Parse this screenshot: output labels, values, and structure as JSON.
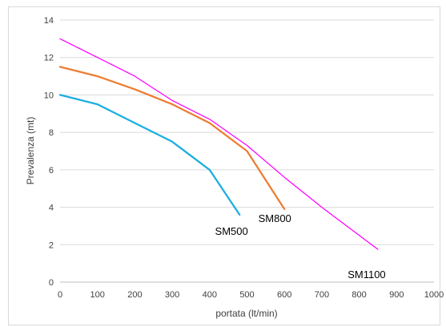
{
  "chart_data": {
    "type": "line",
    "title": "",
    "xlabel": "portata (lt/min)",
    "ylabel": "Prevalenza (mt)",
    "xlim": [
      0,
      1000
    ],
    "ylim": [
      0,
      14
    ],
    "x_ticks": [
      0,
      100,
      200,
      300,
      400,
      500,
      600,
      700,
      800,
      900,
      1000
    ],
    "y_ticks": [
      0,
      2,
      4,
      6,
      8,
      10,
      12,
      14
    ],
    "grid": "horizontal",
    "legend": "none",
    "series": [
      {
        "name": "SM500",
        "color": "#1aaee0",
        "points": [
          [
            0,
            10
          ],
          [
            100,
            9.5
          ],
          [
            200,
            8.5
          ],
          [
            300,
            7.5
          ],
          [
            400,
            6
          ],
          [
            480,
            3.6
          ]
        ]
      },
      {
        "name": "SM800",
        "color": "#ed7d31",
        "points": [
          [
            0,
            11.5
          ],
          [
            100,
            11
          ],
          [
            200,
            10.3
          ],
          [
            300,
            9.5
          ],
          [
            400,
            8.5
          ],
          [
            500,
            7
          ],
          [
            600,
            3.9
          ]
        ]
      },
      {
        "name": "SM1100",
        "color": "#ff00ff",
        "points": [
          [
            0,
            13
          ],
          [
            100,
            12
          ],
          [
            200,
            11
          ],
          [
            300,
            9.7
          ],
          [
            400,
            8.7
          ],
          [
            500,
            7.3
          ],
          [
            600,
            5.6
          ],
          [
            700,
            4
          ],
          [
            800,
            2.5
          ],
          [
            850,
            1.75
          ]
        ]
      }
    ]
  }
}
